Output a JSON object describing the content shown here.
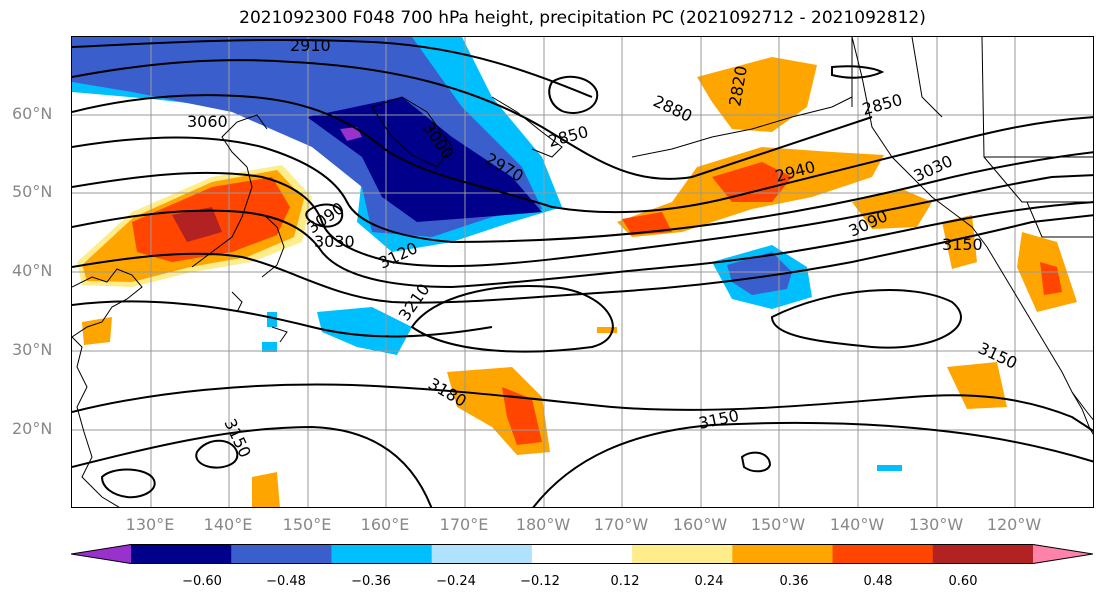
{
  "title": "2021092300 F048 700 hPa height, precipitation PC (2021092712 - 2021092812)",
  "lat_labels": [
    "60°N",
    "50°N",
    "40°N",
    "30°N",
    "20°N"
  ],
  "lon_labels": [
    "130°E",
    "140°E",
    "150°E",
    "160°E",
    "170°E",
    "180°W",
    "170°W",
    "160°W",
    "150°W",
    "140°W",
    "130°W",
    "120°W"
  ],
  "contour_labels": [
    "2910",
    "3060",
    "3000",
    "2970",
    "2850",
    "2880",
    "2820",
    "2850",
    "2940",
    "3030",
    "3090",
    "3030",
    "3120",
    "3210",
    "3090",
    "3150",
    "3180",
    "3150",
    "3150",
    "3150"
  ],
  "colorbar": {
    "ticks": [
      "−0.60",
      "−0.48",
      "−0.36",
      "−0.24",
      "−0.12",
      "0.12",
      "0.24",
      "0.36",
      "0.48",
      "0.60"
    ],
    "colors": [
      "#9932CC",
      "#00008B",
      "#3A5FCD",
      "#00BFFF",
      "#B0E2FF",
      "#FFFFFF",
      "#FFEC8B",
      "#FFA500",
      "#FF4500",
      "#B22222",
      "#FF82AB"
    ]
  }
}
